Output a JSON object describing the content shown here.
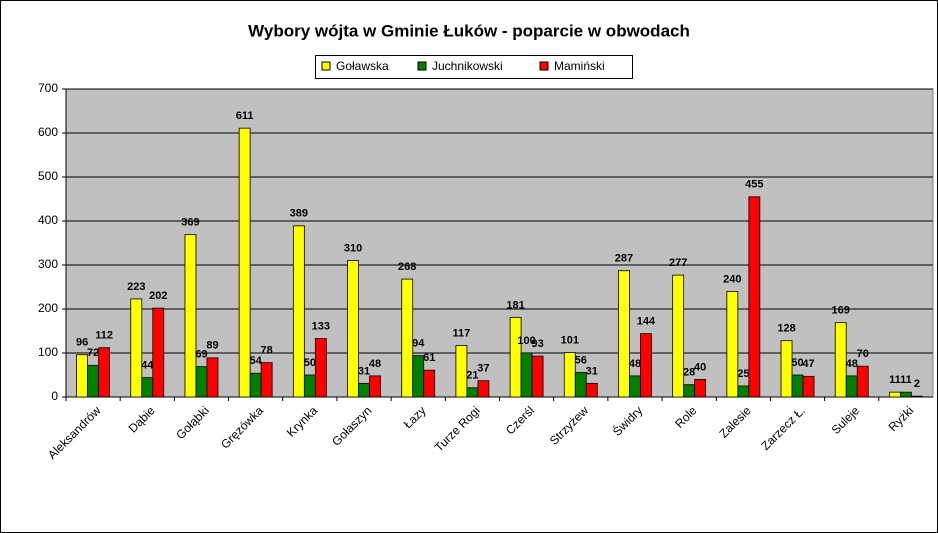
{
  "chart_data": {
    "type": "bar",
    "title": "Wybory wójta w Gminie Łuków - poparcie w obwodach",
    "categories": [
      "Aleksandrów",
      "Dąbie",
      "Gołąbki",
      "Gręzówka",
      "Krynka",
      "Gołaszyn",
      "Łazy",
      "Turze Rogi",
      "Czerśl",
      "Strzyżew",
      "Świdry",
      "Role",
      "Zalesie",
      "Zarzecz Ł.",
      "Suleje",
      "Ryżki"
    ],
    "series": [
      {
        "name": "Goławska",
        "color": "#ffff00",
        "values": [
          96,
          223,
          369,
          611,
          389,
          310,
          268,
          117,
          181,
          101,
          287,
          277,
          240,
          128,
          169,
          11
        ]
      },
      {
        "name": "Juchnikowski",
        "color": "#008000",
        "values": [
          72,
          44,
          69,
          54,
          50,
          31,
          94,
          21,
          100,
          56,
          48,
          28,
          25,
          50,
          48,
          11
        ]
      },
      {
        "name": "Mamiński",
        "color": "#ff0000",
        "values": [
          112,
          202,
          89,
          78,
          133,
          48,
          61,
          37,
          93,
          31,
          144,
          40,
          455,
          47,
          70,
          2
        ]
      }
    ],
    "ylim": [
      0,
      700
    ],
    "yticks": [
      0,
      100,
      200,
      300,
      400,
      500,
      600,
      700
    ],
    "grid": true,
    "legend": "top"
  }
}
